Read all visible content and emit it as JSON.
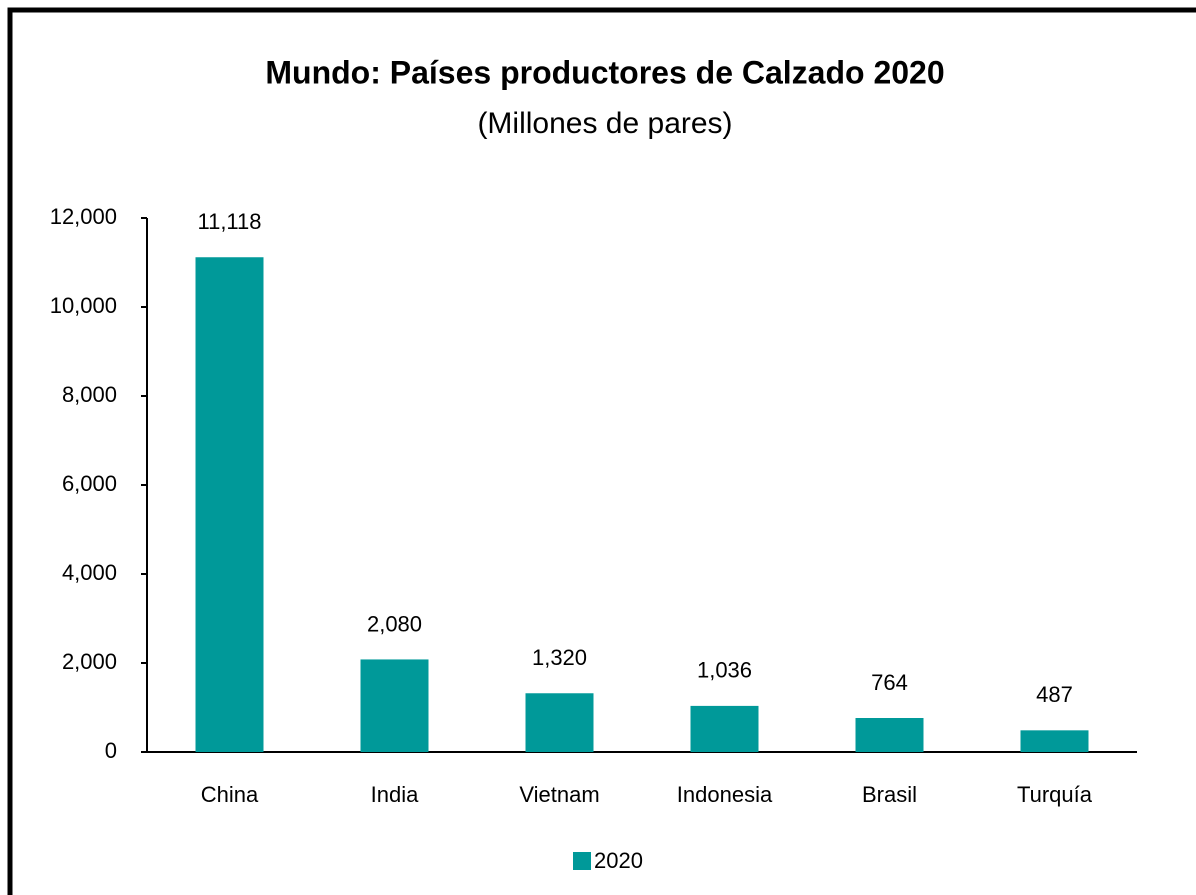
{
  "chart_data": {
    "type": "bar",
    "title": "Mundo: Países productores de Calzado 2020",
    "subtitle": "(Millones de pares)",
    "categories": [
      "China",
      "India",
      "Vietnam",
      "Indonesia",
      "Brasil",
      "Turquía"
    ],
    "series": [
      {
        "name": "2020",
        "color": "#009999",
        "values": [
          11118,
          2080,
          1320,
          1036,
          764,
          487
        ],
        "value_labels": [
          "11,118",
          "2,080",
          "1,320",
          "1,036",
          "764",
          "487"
        ]
      }
    ],
    "ylim": [
      0,
      12000
    ],
    "yticks": [
      0,
      {
        "value": 2000,
        "label": "2,000"
      },
      {
        "value": 4000,
        "label": "4,000"
      },
      {
        "value": 6000,
        "label": "6,000"
      },
      {
        "value": 8000,
        "label": "8,000"
      },
      {
        "value": 10000,
        "label": "10,000"
      },
      {
        "value": 12000,
        "label": "12,000"
      }
    ],
    "grid": false,
    "legend": "bottom"
  }
}
